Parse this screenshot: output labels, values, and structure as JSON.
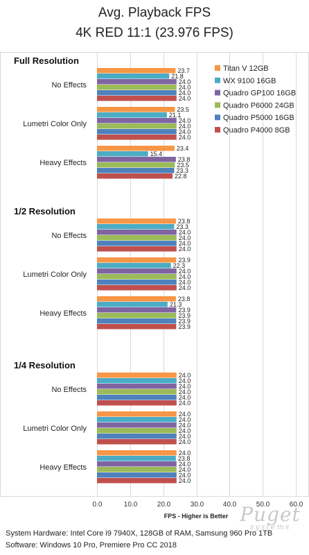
{
  "chart_data": {
    "type": "bar",
    "orientation": "horizontal",
    "title": "Avg. Playback FPS",
    "subtitle": "4K RED 11:1 (23.976 FPS)",
    "xlabel": "FPS - Higher is Better",
    "xlim": [
      0,
      60
    ],
    "xticks": [
      "0.0",
      "10.0",
      "20.0",
      "30.0",
      "40.0",
      "50.0",
      "60.0"
    ],
    "grid": true,
    "legend_position": "top-right",
    "series_colors": [
      "#f79646",
      "#4bacc6",
      "#8064a2",
      "#9bbb59",
      "#4f81bd",
      "#c0504d"
    ],
    "series_names": [
      "Titan V 12GB",
      "WX 9100 16GB",
      "Quadro GP100 16GB",
      "Quadro P6000 24GB",
      "Quadro P5000 16GB",
      "Quadro P4000 8GB"
    ],
    "sections": [
      {
        "label": "Full Resolution",
        "groups": [
          {
            "label": "No Effects",
            "values": [
              23.7,
              21.8,
              24.0,
              24.0,
              24.0,
              24.0
            ]
          },
          {
            "label": "Lumetri Color Only",
            "values": [
              23.5,
              21.1,
              24.0,
              24.0,
              24.0,
              24.0
            ]
          },
          {
            "label": "Heavy Effects",
            "values": [
              23.4,
              15.4,
              23.8,
              23.5,
              23.3,
              22.8
            ]
          }
        ]
      },
      {
        "label": "1/2 Resolution",
        "groups": [
          {
            "label": "No Effects",
            "values": [
              23.8,
              23.3,
              24.0,
              24.0,
              24.0,
              24.0
            ]
          },
          {
            "label": "Lumetri Color Only",
            "values": [
              23.9,
              22.3,
              24.0,
              24.0,
              24.0,
              24.0
            ]
          },
          {
            "label": "Heavy Effects",
            "values": [
              23.8,
              21.3,
              23.9,
              23.9,
              23.9,
              23.9
            ]
          }
        ]
      },
      {
        "label": "1/4 Resolution",
        "groups": [
          {
            "label": "No Effects",
            "values": [
              24.0,
              24.0,
              24.0,
              24.0,
              24.0,
              24.0
            ]
          },
          {
            "label": "Lumetri Color Only",
            "values": [
              24.0,
              24.0,
              24.0,
              24.0,
              24.0,
              24.0
            ]
          },
          {
            "label": "Heavy Effects",
            "values": [
              24.0,
              23.8,
              24.0,
              24.0,
              24.0,
              24.0
            ]
          }
        ]
      }
    ]
  },
  "footer": {
    "line1": "System Hardware: Intel Core i9 7940X,  128GB of RAM, Samsung 960 Pro 1TB",
    "line2": "Software: Windows 10 Pro, Premiere Pro CC 2018"
  },
  "watermark": {
    "name": "Puget",
    "sub": "systems"
  }
}
